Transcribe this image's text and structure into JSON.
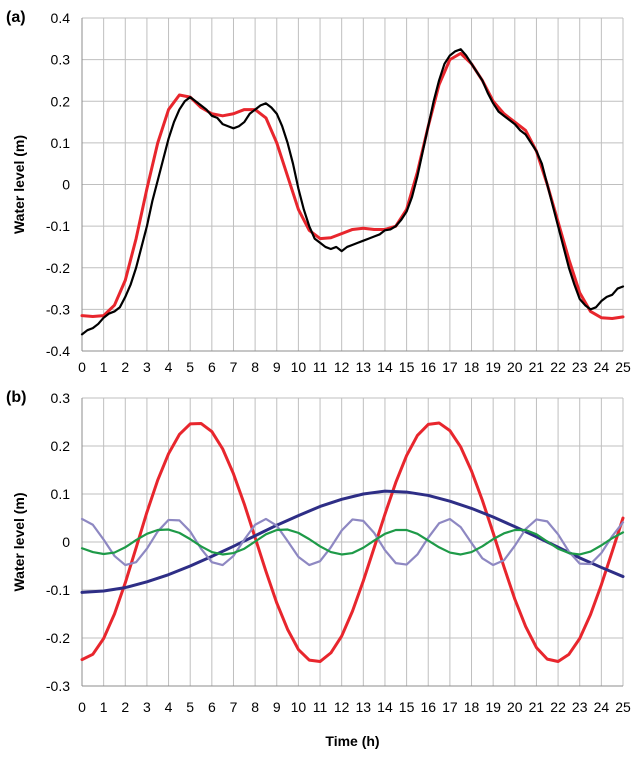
{
  "chart_data": [
    {
      "type": "line",
      "panel_label": "(a)",
      "xlabel": "",
      "ylabel": "Water level (m)",
      "xlim": [
        0,
        25
      ],
      "ylim": [
        -0.4,
        0.4
      ],
      "xticks": [
        0,
        1,
        2,
        3,
        4,
        5,
        6,
        7,
        8,
        9,
        10,
        11,
        12,
        13,
        14,
        15,
        16,
        17,
        18,
        19,
        20,
        21,
        22,
        23,
        24,
        25
      ],
      "yticks": [
        -0.4,
        -0.3,
        -0.2,
        -0.1,
        0,
        0.1,
        0.2,
        0.3,
        0.4
      ],
      "ytick_labels": [
        "-0.4",
        "-0.3",
        "-0.2",
        "-0.1",
        "0",
        "0.1",
        "0.2",
        "0.3",
        "0.4"
      ],
      "grid": true,
      "legend": "none",
      "series": [
        {
          "color": "#e8262d",
          "width": 3,
          "x": [
            0,
            0.5,
            1,
            1.5,
            2,
            2.5,
            3,
            3.5,
            4,
            4.5,
            5,
            5.5,
            6,
            6.5,
            7,
            7.5,
            8,
            8.5,
            9,
            9.5,
            10,
            10.5,
            11,
            11.5,
            12,
            12.5,
            13,
            13.5,
            14,
            14.5,
            15,
            15.5,
            16,
            16.5,
            17,
            17.5,
            18,
            18.5,
            19,
            19.5,
            20,
            20.5,
            21,
            21.5,
            22,
            22.5,
            23,
            23.5,
            24,
            24.5,
            25
          ],
          "y": [
            -0.315,
            -0.317,
            -0.315,
            -0.29,
            -0.23,
            -0.13,
            -0.01,
            0.1,
            0.18,
            0.215,
            0.21,
            0.185,
            0.17,
            0.165,
            0.17,
            0.18,
            0.18,
            0.16,
            0.1,
            0.02,
            -0.06,
            -0.11,
            -0.13,
            -0.128,
            -0.118,
            -0.108,
            -0.105,
            -0.108,
            -0.108,
            -0.1,
            -0.06,
            0.03,
            0.14,
            0.24,
            0.3,
            0.315,
            0.29,
            0.25,
            0.2,
            0.17,
            0.15,
            0.13,
            0.08,
            0.0,
            -0.09,
            -0.18,
            -0.26,
            -0.305,
            -0.32,
            -0.322,
            -0.318
          ]
        },
        {
          "color": "#000000",
          "width": 2.2,
          "x": [
            0,
            0.25,
            0.5,
            0.75,
            1,
            1.25,
            1.5,
            1.75,
            2,
            2.25,
            2.5,
            2.75,
            3,
            3.25,
            3.5,
            3.75,
            4,
            4.25,
            4.5,
            4.75,
            5,
            5.25,
            5.5,
            5.75,
            6,
            6.25,
            6.5,
            6.75,
            7,
            7.25,
            7.5,
            7.75,
            8,
            8.25,
            8.5,
            8.75,
            9,
            9.25,
            9.5,
            9.75,
            10,
            10.25,
            10.5,
            10.75,
            11,
            11.25,
            11.5,
            11.75,
            12,
            12.25,
            12.5,
            12.75,
            13,
            13.25,
            13.5,
            13.75,
            14,
            14.25,
            14.5,
            14.75,
            15,
            15.25,
            15.5,
            15.75,
            16,
            16.25,
            16.5,
            16.75,
            17,
            17.25,
            17.5,
            17.75,
            18,
            18.25,
            18.5,
            18.75,
            19,
            19.25,
            19.5,
            19.75,
            20,
            20.25,
            20.5,
            20.75,
            21,
            21.25,
            21.5,
            21.75,
            22,
            22.25,
            22.5,
            22.75,
            23,
            23.25,
            23.5,
            23.75,
            24,
            24.25,
            24.5,
            24.75,
            25
          ],
          "y": [
            -0.36,
            -0.35,
            -0.345,
            -0.335,
            -0.32,
            -0.31,
            -0.305,
            -0.295,
            -0.27,
            -0.24,
            -0.2,
            -0.15,
            -0.1,
            -0.04,
            0.01,
            0.06,
            0.11,
            0.15,
            0.18,
            0.2,
            0.21,
            0.2,
            0.19,
            0.18,
            0.165,
            0.16,
            0.145,
            0.14,
            0.135,
            0.14,
            0.15,
            0.17,
            0.18,
            0.19,
            0.195,
            0.185,
            0.17,
            0.14,
            0.1,
            0.05,
            -0.01,
            -0.06,
            -0.1,
            -0.13,
            -0.14,
            -0.15,
            -0.155,
            -0.15,
            -0.16,
            -0.15,
            -0.145,
            -0.14,
            -0.135,
            -0.13,
            -0.125,
            -0.12,
            -0.11,
            -0.108,
            -0.1,
            -0.085,
            -0.065,
            -0.03,
            0.02,
            0.08,
            0.14,
            0.2,
            0.25,
            0.29,
            0.31,
            0.32,
            0.325,
            0.31,
            0.29,
            0.27,
            0.25,
            0.22,
            0.195,
            0.175,
            0.165,
            0.155,
            0.145,
            0.13,
            0.12,
            0.1,
            0.08,
            0.05,
            0.0,
            -0.05,
            -0.1,
            -0.15,
            -0.2,
            -0.24,
            -0.275,
            -0.29,
            -0.3,
            -0.295,
            -0.28,
            -0.27,
            -0.265,
            -0.25,
            -0.245
          ]
        }
      ]
    },
    {
      "type": "line",
      "panel_label": "(b)",
      "xlabel": "Time (h)",
      "ylabel": "Water level (m)",
      "xlim": [
        0,
        25
      ],
      "ylim": [
        -0.3,
        0.3
      ],
      "xticks": [
        0,
        1,
        2,
        3,
        4,
        5,
        6,
        7,
        8,
        9,
        10,
        11,
        12,
        13,
        14,
        15,
        16,
        17,
        18,
        19,
        20,
        21,
        22,
        23,
        24,
        25
      ],
      "yticks": [
        -0.3,
        -0.2,
        -0.1,
        0,
        0.1,
        0.2,
        0.3
      ],
      "ytick_labels": [
        "-0.3",
        "-0.2",
        "-0.1",
        "0",
        "0.1",
        "0.2",
        "0.3"
      ],
      "grid": true,
      "legend": "none",
      "series": [
        {
          "color": "#e8262d",
          "width": 3,
          "x": [
            0,
            0.5,
            1,
            1.5,
            2,
            2.5,
            3,
            3.5,
            4,
            4.5,
            5,
            5.5,
            6,
            6.5,
            7,
            7.5,
            8,
            8.5,
            9,
            9.5,
            10,
            10.5,
            11,
            11.5,
            12,
            12.5,
            13,
            13.5,
            14,
            14.5,
            15,
            15.5,
            16,
            16.5,
            17,
            17.5,
            18,
            18.5,
            19,
            19.5,
            20,
            20.5,
            21,
            21.5,
            22,
            22.5,
            23,
            23.5,
            24,
            24.5,
            25
          ],
          "y": [
            -0.245,
            -0.234,
            -0.201,
            -0.15,
            -0.085,
            -0.012,
            0.062,
            0.129,
            0.184,
            0.224,
            0.246,
            0.247,
            0.23,
            0.194,
            0.142,
            0.079,
            0.009,
            -0.061,
            -0.127,
            -0.182,
            -0.224,
            -0.246,
            -0.249,
            -0.231,
            -0.196,
            -0.144,
            -0.081,
            -0.012,
            0.058,
            0.124,
            0.18,
            0.222,
            0.245,
            0.248,
            0.232,
            0.198,
            0.148,
            0.087,
            0.019,
            -0.052,
            -0.119,
            -0.176,
            -0.22,
            -0.244,
            -0.249,
            -0.234,
            -0.201,
            -0.151,
            -0.089,
            -0.02,
            0.05
          ]
        },
        {
          "color": "#2e2e86",
          "width": 3,
          "x": [
            0,
            1,
            2,
            3,
            4,
            5,
            6,
            7,
            8,
            9,
            10,
            11,
            12,
            13,
            14,
            15,
            16,
            17,
            18,
            19,
            20,
            21,
            22,
            23,
            24,
            25
          ],
          "y": [
            -0.105,
            -0.102,
            -0.095,
            -0.083,
            -0.068,
            -0.05,
            -0.03,
            -0.009,
            0.013,
            0.035,
            0.055,
            0.074,
            0.089,
            0.1,
            0.106,
            0.104,
            0.097,
            0.085,
            0.07,
            0.052,
            0.032,
            0.011,
            -0.011,
            -0.033,
            -0.053,
            -0.072
          ]
        },
        {
          "color": "#8e88c2",
          "width": 2.2,
          "x": [
            0,
            0.5,
            1,
            1.5,
            2,
            2.5,
            3,
            3.5,
            4,
            4.5,
            5,
            5.5,
            6,
            6.5,
            7,
            7.5,
            8,
            8.5,
            9,
            9.5,
            10,
            10.5,
            11,
            11.5,
            12,
            12.5,
            13,
            13.5,
            14,
            14.5,
            15,
            15.5,
            16,
            16.5,
            17,
            17.5,
            18,
            18.5,
            19,
            19.5,
            20,
            20.5,
            21,
            21.5,
            22,
            22.5,
            23,
            23.5,
            24,
            24.5,
            25
          ],
          "y": [
            0.048,
            0.036,
            0.005,
            -0.029,
            -0.048,
            -0.042,
            -0.014,
            0.022,
            0.046,
            0.045,
            0.022,
            -0.014,
            -0.042,
            -0.048,
            -0.029,
            0.005,
            0.036,
            0.048,
            0.034,
            0.002,
            -0.031,
            -0.048,
            -0.04,
            -0.011,
            0.024,
            0.047,
            0.044,
            0.019,
            -0.017,
            -0.044,
            -0.047,
            -0.026,
            0.009,
            0.039,
            0.048,
            0.031,
            -0.002,
            -0.034,
            -0.048,
            -0.038,
            -0.008,
            0.027,
            0.047,
            0.043,
            0.016,
            -0.02,
            -0.045,
            -0.046,
            -0.023,
            0.012,
            0.041
          ]
        },
        {
          "color": "#1e9a48",
          "width": 2.2,
          "x": [
            0,
            0.5,
            1,
            1.5,
            2,
            2.5,
            3,
            3.5,
            4,
            4.5,
            5,
            5.5,
            6,
            6.5,
            7,
            7.5,
            8,
            8.5,
            9,
            9.5,
            10,
            10.5,
            11,
            11.5,
            12,
            12.5,
            13,
            13.5,
            14,
            14.5,
            15,
            15.5,
            16,
            16.5,
            17,
            17.5,
            18,
            18.5,
            19,
            19.5,
            20,
            20.5,
            21,
            21.5,
            22,
            22.5,
            23,
            23.5,
            24,
            24.5,
            25
          ],
          "y": [
            -0.013,
            -0.021,
            -0.025,
            -0.022,
            -0.011,
            0.004,
            0.017,
            0.025,
            0.026,
            0.019,
            0.006,
            -0.009,
            -0.021,
            -0.026,
            -0.023,
            -0.014,
            0.001,
            0.016,
            0.025,
            0.026,
            0.019,
            0.006,
            -0.009,
            -0.021,
            -0.026,
            -0.023,
            -0.012,
            0.003,
            0.017,
            0.025,
            0.025,
            0.017,
            0.003,
            -0.011,
            -0.022,
            -0.026,
            -0.021,
            -0.009,
            0.006,
            0.018,
            0.025,
            0.025,
            0.016,
            0.001,
            -0.014,
            -0.023,
            -0.026,
            -0.02,
            -0.007,
            0.008,
            0.02
          ]
        }
      ]
    }
  ]
}
